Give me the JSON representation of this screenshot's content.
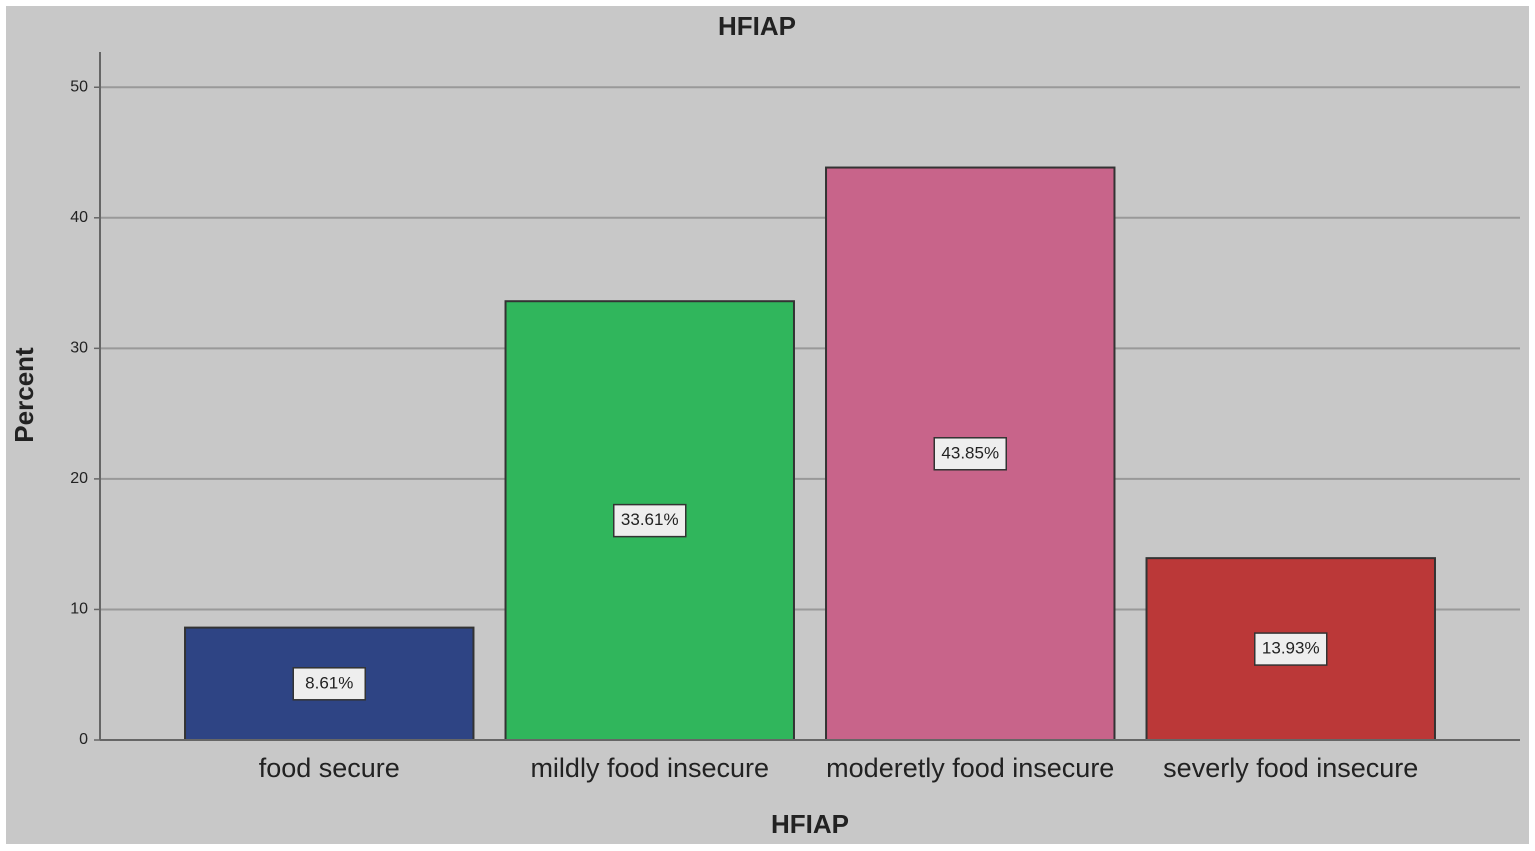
{
  "chart_data": {
    "type": "bar",
    "title": "HFIAP",
    "x_label": "HFIAP",
    "y_label": "Percent",
    "categories": [
      "food secure",
      "mildly food insecure",
      "moderetly food insecure",
      "severly food insecure"
    ],
    "values": [
      8.61,
      33.61,
      43.85,
      13.93
    ],
    "value_labels": [
      "8.61%",
      "33.61%",
      "43.85%",
      "13.93%"
    ],
    "colors": [
      "#2e4484",
      "#30b65c",
      "#c8648a",
      "#bb3838"
    ],
    "ylim": [
      0,
      52.7
    ],
    "yticks": [
      0,
      10,
      20,
      30,
      40,
      50
    ],
    "grid": true
  }
}
